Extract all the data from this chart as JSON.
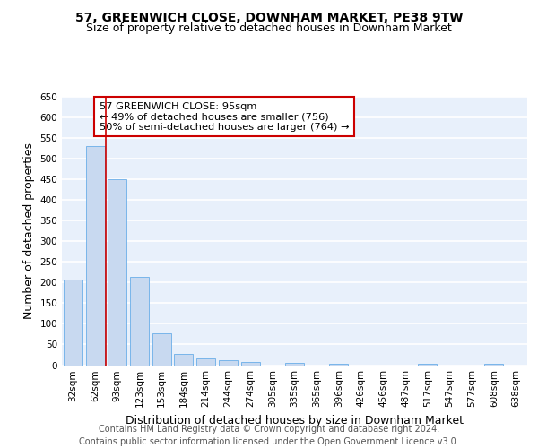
{
  "title_line1": "57, GREENWICH CLOSE, DOWNHAM MARKET, PE38 9TW",
  "title_line2": "Size of property relative to detached houses in Downham Market",
  "xlabel": "Distribution of detached houses by size in Downham Market",
  "ylabel": "Number of detached properties",
  "categories": [
    "32sqm",
    "62sqm",
    "93sqm",
    "123sqm",
    "153sqm",
    "184sqm",
    "214sqm",
    "244sqm",
    "274sqm",
    "305sqm",
    "335sqm",
    "365sqm",
    "396sqm",
    "426sqm",
    "456sqm",
    "487sqm",
    "517sqm",
    "547sqm",
    "577sqm",
    "608sqm",
    "638sqm"
  ],
  "values": [
    208,
    530,
    450,
    213,
    77,
    27,
    16,
    12,
    8,
    0,
    5,
    0,
    4,
    0,
    0,
    0,
    3,
    0,
    0,
    4,
    0
  ],
  "bar_color": "#c8d9f0",
  "bar_edge_color": "#6aaee8",
  "vline_x": 1.5,
  "vline_color": "#cc0000",
  "annotation_text": "57 GREENWICH CLOSE: 95sqm\n← 49% of detached houses are smaller (756)\n50% of semi-detached houses are larger (764) →",
  "annotation_box_color": "white",
  "annotation_box_edge_color": "#cc0000",
  "ylim": [
    0,
    650
  ],
  "yticks": [
    0,
    50,
    100,
    150,
    200,
    250,
    300,
    350,
    400,
    450,
    500,
    550,
    600,
    650
  ],
  "background_color": "#e8f0fb",
  "grid_color": "white",
  "footer_text": "Contains HM Land Registry data © Crown copyright and database right 2024.\nContains public sector information licensed under the Open Government Licence v3.0.",
  "title_fontsize": 10,
  "subtitle_fontsize": 9,
  "tick_fontsize": 7.5,
  "label_fontsize": 9,
  "footer_fontsize": 7
}
